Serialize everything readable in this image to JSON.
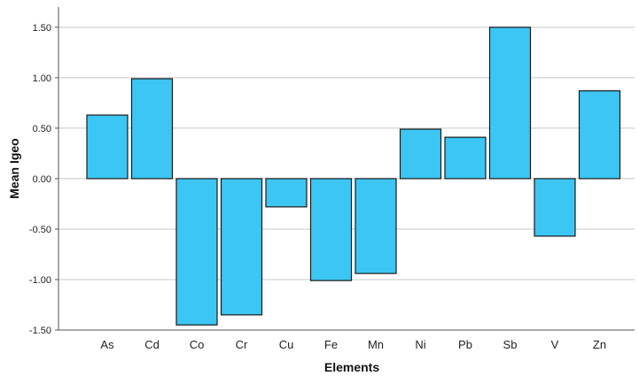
{
  "chart_data": {
    "type": "bar",
    "title": "",
    "xlabel": "Elements",
    "ylabel": "Mean Igeo",
    "categories": [
      "As",
      "Cd",
      "Co",
      "Cr",
      "Cu",
      "Fe",
      "Mn",
      "Ni",
      "Pb",
      "Sb",
      "V",
      "Zn"
    ],
    "values": [
      0.63,
      0.99,
      -1.45,
      -1.35,
      -0.28,
      -1.01,
      -0.94,
      0.49,
      0.41,
      1.5,
      -0.57,
      0.87
    ],
    "ylim": [
      -1.5,
      1.7
    ],
    "yticks": [
      "1.50",
      "1.00",
      "0.50",
      "0.00",
      "-0.50",
      "-1.00",
      "-1.50"
    ],
    "ytick_values": [
      1.5,
      1.0,
      0.5,
      0.0,
      -0.5,
      -1.0,
      -1.5
    ],
    "grid": true,
    "bar_color": "#3cc6f3",
    "bar_edge_color": "#1a1a1a",
    "grid_color": "#c8c8c8"
  }
}
